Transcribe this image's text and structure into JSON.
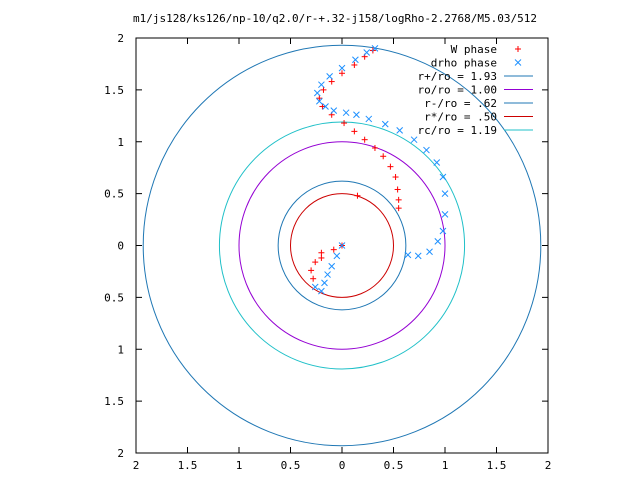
{
  "chart_data": {
    "type": "scatter",
    "title": "m1/js128/ks126/np-10/q2.0/r-+.32-j158/logRho-2.2768/M5.03/512",
    "xlim": [
      -2,
      2
    ],
    "ylim": [
      -2,
      2
    ],
    "x_ticks": [
      {
        "v": -2,
        "label": "2"
      },
      {
        "v": -1.5,
        "label": "1.5"
      },
      {
        "v": -1,
        "label": "1"
      },
      {
        "v": -0.5,
        "label": "0.5"
      },
      {
        "v": 0,
        "label": "0"
      },
      {
        "v": 0.5,
        "label": "0.5"
      },
      {
        "v": 1,
        "label": "1"
      },
      {
        "v": 1.5,
        "label": "1.5"
      },
      {
        "v": 2,
        "label": "2"
      }
    ],
    "y_ticks": [
      {
        "v": -2,
        "label": "2"
      },
      {
        "v": -1.5,
        "label": "1.5"
      },
      {
        "v": -1,
        "label": "1"
      },
      {
        "v": -0.5,
        "label": "0.5"
      },
      {
        "v": 0,
        "label": "0"
      },
      {
        "v": 0.5,
        "label": "0.5"
      },
      {
        "v": 1,
        "label": "1"
      },
      {
        "v": 1.5,
        "label": "1.5"
      },
      {
        "v": 2,
        "label": "2"
      }
    ],
    "legend_position": "top-right",
    "series": [
      {
        "name": "W phase",
        "marker": "plus",
        "color": "#ff0000",
        "x": [
          0.3,
          0.22,
          0.12,
          0.0,
          -0.1,
          -0.18,
          -0.22,
          -0.19,
          -0.1,
          0.02,
          0.12,
          0.22,
          0.32,
          0.4,
          0.47,
          0.52,
          0.54,
          0.55,
          0.55,
          0.15,
          -0.2,
          -0.26,
          -0.3,
          -0.28,
          -0.2,
          -0.08,
          0.0
        ],
        "y": [
          1.88,
          1.82,
          1.74,
          1.66,
          1.58,
          1.5,
          1.42,
          1.34,
          1.26,
          1.18,
          1.1,
          1.02,
          0.94,
          0.86,
          0.76,
          0.66,
          0.54,
          0.44,
          0.36,
          0.48,
          -0.07,
          -0.16,
          -0.24,
          -0.32,
          -0.12,
          -0.04,
          0.0
        ]
      },
      {
        "name": "drho phase",
        "marker": "cross",
        "color": "#1e90ff",
        "x": [
          0.32,
          0.24,
          0.13,
          0.0,
          -0.12,
          -0.2,
          -0.24,
          -0.22,
          -0.16,
          -0.08,
          0.04,
          0.14,
          0.26,
          0.42,
          0.56,
          0.7,
          0.82,
          0.92,
          0.98,
          1.0,
          1.0,
          0.98,
          0.93,
          0.85,
          0.74,
          0.64,
          0.0,
          -0.05,
          -0.1,
          -0.14,
          -0.17,
          -0.2,
          -0.26
        ],
        "y": [
          1.9,
          1.86,
          1.79,
          1.71,
          1.63,
          1.55,
          1.47,
          1.39,
          1.34,
          1.3,
          1.28,
          1.26,
          1.22,
          1.17,
          1.11,
          1.02,
          0.92,
          0.8,
          0.66,
          0.5,
          0.3,
          0.14,
          0.04,
          -0.06,
          -0.1,
          -0.09,
          0.0,
          -0.1,
          -0.2,
          -0.28,
          -0.36,
          -0.44,
          -0.4
        ]
      }
    ],
    "circles": [
      {
        "name": "r+/ro = 1.93",
        "r": 1.93,
        "color": "#1f77b4"
      },
      {
        "name": "ro/ro = 1.00",
        "r": 1.0,
        "color": "#9400d3"
      },
      {
        "name": "r-/ro = .62",
        "r": 0.62,
        "color": "#1f77b4"
      },
      {
        "name": "r*/ro = .50",
        "r": 0.5,
        "color": "#cc0000"
      },
      {
        "name": "rc/ro = 1.19",
        "r": 1.19,
        "color": "#20c0c8"
      }
    ]
  }
}
